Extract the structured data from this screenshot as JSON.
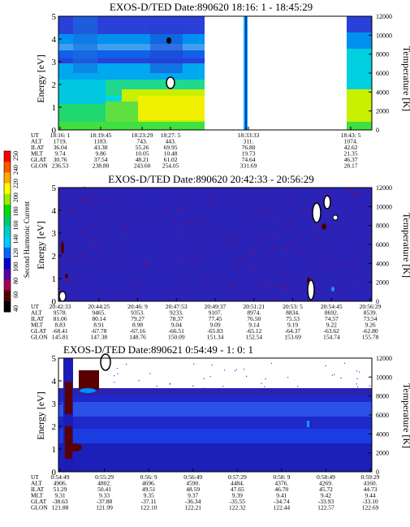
{
  "chart_data": [
    {
      "type": "heatmap",
      "title": "EXOS-D/TED   Date:890620  18:16: 1 - 18:45:29",
      "ylabel": "Energy [eV]",
      "y2label": "Temperature [K]",
      "ylim": [
        0,
        5
      ],
      "y2lim": [
        0,
        12000
      ],
      "yticks": [
        "0",
        "1",
        "2",
        "3",
        "4",
        "5"
      ],
      "y2ticks": [
        "0",
        "2000",
        "4000",
        "6000",
        "8000",
        "10000",
        "12000"
      ],
      "table_rows": [
        "UT",
        "ALT",
        "ILAT",
        "MLT",
        "GLAT",
        "GLON"
      ],
      "columns": [
        [
          "18:16: 1",
          "1719.",
          "36.04",
          "9.74",
          "30.76",
          "236.53"
        ],
        [
          "18:19:45",
          "1183.",
          "43.38",
          "9.86",
          "37.54",
          "238.80"
        ],
        [
          "18:23:29",
          "743.",
          "55.26",
          "10.05",
          "48.21",
          "243.60"
        ],
        [
          "18:27: 5",
          "443.",
          "69.95",
          "10.48",
          "61.02",
          "254.05"
        ],
        [
          "18:33:33",
          "311.",
          "76.80",
          "19.73",
          "74.64",
          "331.69"
        ],
        [
          "18:43: 5",
          "1074.",
          "42.62",
          "21.35",
          "46.37",
          "28.17"
        ]
      ]
    },
    {
      "type": "heatmap",
      "title": "EXOS-D/TED   Date:890620  20:42:33 - 20:56:29",
      "ylabel": "Energy [eV]",
      "y2label": "Temperature [K]",
      "ylim": [
        0,
        5
      ],
      "y2lim": [
        0,
        12000
      ],
      "yticks": [
        "0",
        "1",
        "2",
        "3",
        "4",
        "5"
      ],
      "y2ticks": [
        "0",
        "2000",
        "4000",
        "6000",
        "8000",
        "10000",
        "12000"
      ],
      "table_rows": [
        "UT",
        "ALT",
        "ILAT",
        "MLT",
        "GLAT",
        "GLON"
      ],
      "columns": [
        [
          "20:42:33",
          "9578.",
          "81.06",
          "8.83",
          "-68.41",
          "145.81"
        ],
        [
          "20:44:25",
          "9465.",
          "80.14",
          "8.91",
          "-67.78",
          "147.38"
        ],
        [
          "20:46: 9",
          "9353.",
          "79.27",
          "8.98",
          "-67.16",
          "148.76"
        ],
        [
          "20:47:53",
          "9233.",
          "78.37",
          "9.04",
          "-66.51",
          "150.09"
        ],
        [
          "20:49:37",
          "9107.",
          "77.45",
          "9.09",
          "-65.83",
          "151.34"
        ],
        [
          "20:51:21",
          "8974.",
          "76.50",
          "9.14",
          "-65.12",
          "152.54"
        ],
        [
          "20:53: 5",
          "8834.",
          "75.53",
          "9.19",
          "-64.37",
          "153.69"
        ],
        [
          "20:54:45",
          "8692.",
          "74.57",
          "9.22",
          "-63.62",
          "154.74"
        ],
        [
          "20:56:29",
          "8539.",
          "73.54",
          "9.26",
          "-62.80",
          "155.78"
        ]
      ]
    },
    {
      "type": "heatmap",
      "title": "EXOS-D/TED   Date:890621  0:54:49 - 1: 0: 1",
      "ylabel": "Energy [eV]",
      "y2label": "Temperature [K]",
      "ylim": [
        0,
        5
      ],
      "y2lim": [
        0,
        12000
      ],
      "yticks": [
        "0",
        "1",
        "2",
        "3",
        "4",
        "5"
      ],
      "y2ticks": [
        "0",
        "2000",
        "4000",
        "6000",
        "8000",
        "10000",
        "12000"
      ],
      "table_rows": [
        "UT",
        "ALT",
        "ILAT",
        "MLT",
        "GLAT",
        "GLON"
      ],
      "columns": [
        [
          "0:54:49",
          "4906.",
          "51.29",
          "9.31",
          "-38.63",
          "121.88"
        ],
        [
          "0:55:29",
          "4802.",
          "50.41",
          "9.33",
          "-37.88",
          "121.99"
        ],
        [
          "0:56: 9",
          "4696.",
          "49.51",
          "9.35",
          "-37.11",
          "122.10"
        ],
        [
          "0:56:49",
          "4590.",
          "48.59",
          "9.37",
          "-36.34",
          "122.21"
        ],
        [
          "0:57:29",
          "4484.",
          "47.65",
          "9.39",
          "-35.55",
          "122.32"
        ],
        [
          "0:58: 9",
          "4376.",
          "46.70",
          "9.41",
          "-34.74",
          "122.44"
        ],
        [
          "0:58:49",
          "4269.",
          "45.72",
          "9.42",
          "-33.93",
          "122.57"
        ],
        [
          "0:59:29",
          "4160.",
          "44.73",
          "9.44",
          "-33.10",
          "122.69"
        ]
      ]
    }
  ],
  "colorbar": {
    "label": "Second Harmonic Current",
    "ticks": [
      "40",
      "60",
      "80",
      "100",
      "120",
      "140",
      "160",
      "180",
      "200",
      "220",
      "240",
      "250"
    ],
    "colors": [
      "#000000",
      "#550000",
      "#aa0055",
      "#5500aa",
      "#0000cc",
      "#0066ff",
      "#00ccff",
      "#00cccc",
      "#00cc66",
      "#00dd00",
      "#99ee00",
      "#ffff00",
      "#ffaa00",
      "#ff5500",
      "#ff0000"
    ]
  }
}
